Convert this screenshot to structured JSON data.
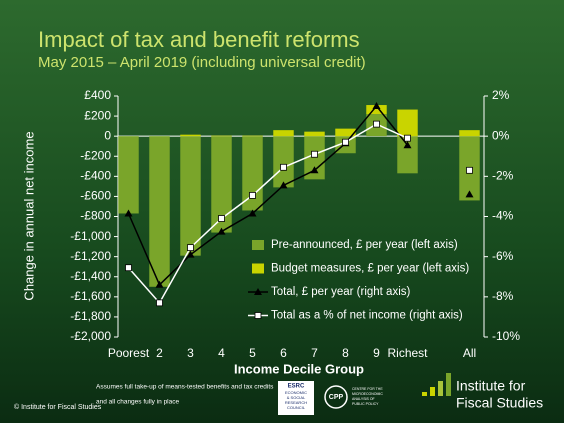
{
  "chart_data": {
    "type": "bar",
    "title": "Impact of tax and benefit reforms",
    "subtitle": "May 2015 – April 2019 (including universal credit)",
    "y_label": "Change in annual net income",
    "x_label": "Income Decile Group",
    "categories": [
      "Poorest",
      "2",
      "3",
      "4",
      "5",
      "6",
      "7",
      "8",
      "9",
      "Richest",
      null,
      "All"
    ],
    "series": [
      {
        "name": "Pre-announced, £ per year (left axis)",
        "kind": "bar",
        "color": "#7aa52a",
        "values": [
          -770,
          -1500,
          -1190,
          -960,
          -740,
          -510,
          -430,
          -170,
          220,
          -370,
          null,
          -640
        ]
      },
      {
        "name": "Budget measures, £ per year (left axis)",
        "kind": "bar",
        "color": "#c9d400",
        "values": [
          0,
          0,
          15,
          5,
          5,
          60,
          45,
          75,
          90,
          265,
          null,
          60
        ]
      },
      {
        "name": "Total, £ per year (right axis)",
        "kind": "line",
        "marker": "triangle",
        "color": "#000000",
        "axis": "y2",
        "values": [
          -3.85,
          -7.4,
          -5.9,
          -4.75,
          -3.85,
          -2.45,
          -1.7,
          -0.35,
          1.5,
          -0.45,
          null,
          -2.9
        ]
      },
      {
        "name": "Total as a % of net income (right axis)",
        "kind": "line",
        "marker": "square",
        "color": "#ffffff",
        "axis": "y2",
        "values": [
          -6.55,
          -8.3,
          -5.55,
          -4.1,
          -2.95,
          -1.55,
          -0.9,
          -0.3,
          0.6,
          -0.1,
          null,
          -1.7
        ]
      }
    ],
    "ylim": [
      -2000,
      400
    ],
    "yticks": [
      {
        "value": 400,
        "label": "£400"
      },
      {
        "value": 200,
        "label": "£200"
      },
      0,
      {
        "value": -200,
        "label": "-£200"
      },
      {
        "value": -400,
        "label": "-£400"
      },
      {
        "value": -600,
        "label": "-£600"
      },
      {
        "value": -800,
        "label": "-£800"
      },
      {
        "value": -1000,
        "label": "-£1,000"
      },
      {
        "value": -1200,
        "label": "-£1,200"
      },
      {
        "value": -1400,
        "label": "-£1,400"
      },
      {
        "value": -1600,
        "label": "-£1,600"
      },
      {
        "value": -1800,
        "label": "-£1,800"
      },
      {
        "value": -2000,
        "label": "-£2,000"
      }
    ],
    "y2lim": [
      -10,
      2
    ],
    "y2ticks": [
      {
        "value": 2,
        "label": "2%"
      },
      {
        "value": 0,
        "label": "0%"
      },
      {
        "value": -2,
        "label": "-2%"
      },
      {
        "value": -4,
        "label": "-4%"
      },
      {
        "value": -6,
        "label": "-6%"
      },
      {
        "value": -8,
        "label": "-8%"
      },
      {
        "value": -10,
        "label": "-10%"
      }
    ],
    "legend": "lower-right",
    "footnote": [
      "Assumes full take-up of means-tested benefits and tax credits",
      "and all changes fully in place"
    ],
    "copyright": "© Institute for Fiscal Studies",
    "logos": {
      "esrc": "ESRC",
      "esrc_sub": [
        "ECONOMIC",
        "& SOCIAL",
        "RESEARCH",
        "COUNCIL"
      ],
      "cpp": "CPP",
      "cpp_sub": [
        "CENTRE FOR THE",
        "MICROECONOMIC",
        "ANALYSIS OF",
        "PUBLIC POLICY"
      ],
      "ifs": [
        "Institute for",
        "Fiscal Studies"
      ]
    }
  }
}
